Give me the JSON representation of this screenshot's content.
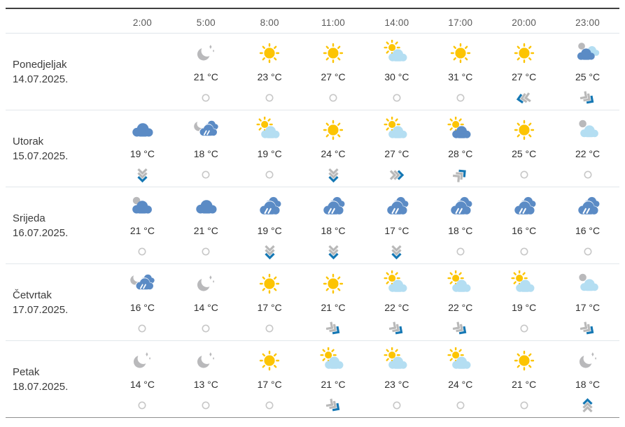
{
  "table": {
    "times": [
      "2:00",
      "5:00",
      "8:00",
      "11:00",
      "14:00",
      "17:00",
      "20:00",
      "23:00"
    ],
    "days": [
      {
        "name": "Ponedjeljak",
        "date": "14.07.2025.",
        "hours": [
          {
            "time": "2:00",
            "icon": "",
            "temp": "",
            "wind": ""
          },
          {
            "time": "5:00",
            "icon": "night-clear",
            "temp": "21 °C",
            "wind": "calm"
          },
          {
            "time": "8:00",
            "icon": "sunny",
            "temp": "23 °C",
            "wind": "calm"
          },
          {
            "time": "11:00",
            "icon": "sunny",
            "temp": "27 °C",
            "wind": "calm"
          },
          {
            "time": "14:00",
            "icon": "partly-light",
            "temp": "30 °C",
            "wind": "calm"
          },
          {
            "time": "17:00",
            "icon": "sunny",
            "temp": "31 °C",
            "wind": "calm"
          },
          {
            "time": "20:00",
            "icon": "sunny",
            "temp": "27 °C",
            "wind": "left"
          },
          {
            "time": "23:00",
            "icon": "night-mixed",
            "temp": "25 °C",
            "wind": "down-right"
          }
        ]
      },
      {
        "name": "Utorak",
        "date": "15.07.2025.",
        "hours": [
          {
            "time": "2:00",
            "icon": "cloudy-blue",
            "temp": "19 °C",
            "wind": "down"
          },
          {
            "time": "5:00",
            "icon": "rain-moon",
            "temp": "18 °C",
            "wind": "calm"
          },
          {
            "time": "8:00",
            "icon": "partly-light",
            "temp": "19 °C",
            "wind": "calm"
          },
          {
            "time": "11:00",
            "icon": "sunny",
            "temp": "24 °C",
            "wind": "down"
          },
          {
            "time": "14:00",
            "icon": "partly-light",
            "temp": "27 °C",
            "wind": "right"
          },
          {
            "time": "17:00",
            "icon": "partly-blue",
            "temp": "28 °C",
            "wind": "up-right"
          },
          {
            "time": "20:00",
            "icon": "sunny",
            "temp": "25 °C",
            "wind": "calm"
          },
          {
            "time": "23:00",
            "icon": "night-light-cloud",
            "temp": "22 °C",
            "wind": "calm"
          }
        ]
      },
      {
        "name": "Srijeda",
        "date": "16.07.2025.",
        "hours": [
          {
            "time": "2:00",
            "icon": "cloud-moon",
            "temp": "21 °C",
            "wind": "calm"
          },
          {
            "time": "5:00",
            "icon": "cloudy-blue",
            "temp": "21 °C",
            "wind": "calm"
          },
          {
            "time": "8:00",
            "icon": "rain",
            "temp": "19 °C",
            "wind": "down"
          },
          {
            "time": "11:00",
            "icon": "rain",
            "temp": "18 °C",
            "wind": "down"
          },
          {
            "time": "14:00",
            "icon": "rain",
            "temp": "17 °C",
            "wind": "down"
          },
          {
            "time": "17:00",
            "icon": "rain",
            "temp": "18 °C",
            "wind": "calm"
          },
          {
            "time": "20:00",
            "icon": "rain",
            "temp": "16 °C",
            "wind": "calm"
          },
          {
            "time": "23:00",
            "icon": "rain",
            "temp": "16 °C",
            "wind": "calm"
          }
        ]
      },
      {
        "name": "Četvrtak",
        "date": "17.07.2025.",
        "hours": [
          {
            "time": "2:00",
            "icon": "rain-moon",
            "temp": "16 °C",
            "wind": "calm"
          },
          {
            "time": "5:00",
            "icon": "night-clear",
            "temp": "14 °C",
            "wind": "calm"
          },
          {
            "time": "8:00",
            "icon": "sunny",
            "temp": "17 °C",
            "wind": "calm"
          },
          {
            "time": "11:00",
            "icon": "sunny",
            "temp": "21 °C",
            "wind": "down-right"
          },
          {
            "time": "14:00",
            "icon": "partly-light",
            "temp": "22 °C",
            "wind": "down-right"
          },
          {
            "time": "17:00",
            "icon": "partly-light",
            "temp": "22 °C",
            "wind": "down-right"
          },
          {
            "time": "20:00",
            "icon": "partly-light",
            "temp": "19 °C",
            "wind": "calm"
          },
          {
            "time": "23:00",
            "icon": "night-light-cloud",
            "temp": "17 °C",
            "wind": "down-right"
          }
        ]
      },
      {
        "name": "Petak",
        "date": "18.07.2025.",
        "hours": [
          {
            "time": "2:00",
            "icon": "night-clear",
            "temp": "14 °C",
            "wind": "calm"
          },
          {
            "time": "5:00",
            "icon": "night-clear",
            "temp": "13 °C",
            "wind": "calm"
          },
          {
            "time": "8:00",
            "icon": "sunny",
            "temp": "17 °C",
            "wind": "calm"
          },
          {
            "time": "11:00",
            "icon": "partly-light",
            "temp": "21 °C",
            "wind": "down-right"
          },
          {
            "time": "14:00",
            "icon": "partly-light",
            "temp": "23 °C",
            "wind": "calm"
          },
          {
            "time": "17:00",
            "icon": "partly-light",
            "temp": "24 °C",
            "wind": "calm"
          },
          {
            "time": "20:00",
            "icon": "sunny",
            "temp": "21 °C",
            "wind": "calm"
          },
          {
            "time": "23:00",
            "icon": "night-clear",
            "temp": "18 °C",
            "wind": "up"
          }
        ]
      }
    ]
  },
  "colors": {
    "sun": "#fcc403",
    "cloud_blue": "#5b8bc5",
    "cloud_light": "#b4def2",
    "moon_gray": "#b9b9bb",
    "wind_blue": "#1678b4",
    "wind_gray": "#b9b9b9",
    "calm_ring": "#c7c7c7"
  }
}
